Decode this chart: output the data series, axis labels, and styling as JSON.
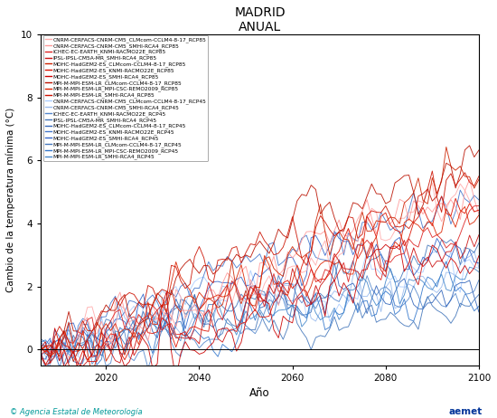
{
  "title": "MADRID",
  "subtitle": "ANUAL",
  "xlabel": "Año",
  "ylabel": "Cambio de la temperatura mínima (°C)",
  "xlim": [
    2006,
    2100
  ],
  "ylim": [
    -0.5,
    10
  ],
  "yticks": [
    0,
    2,
    4,
    6,
    8,
    10
  ],
  "xticks": [
    2020,
    2040,
    2060,
    2080,
    2100
  ],
  "rcp85_colors": [
    "#ffaaaa",
    "#ff9999",
    "#dd2222",
    "#cc1111",
    "#cc2200",
    "#dd1100",
    "#cc0000",
    "#bb1100",
    "#dd2200",
    "#cc1100"
  ],
  "rcp45_colors": [
    "#aaccff",
    "#99bbee",
    "#5588cc",
    "#4477bb",
    "#3366bb",
    "#4477cc",
    "#3366cc",
    "#4477bb",
    "#3377cc",
    "#4488cc"
  ],
  "legend_labels_rcp85": [
    "CNRM-CERFACS-CNRM-CM5_CLMcom-CCLM4-8-17_RCP85",
    "CNRM-CERFACS-CNRM-CM5_SMHI-RCA4_RCP85",
    "ICHEC-EC-EARTH_KNMI-RACMO22E_RCP85",
    "IPSL-IPSL-CM5A-MR_SMHI-RCA4_RCP85",
    "MOHC-HadGEM2-ES_CLMcom-CCLM4-8-17_RCP85",
    "MOHC-HadGEM2-ES_KNMI-RACMO22E_RCP85",
    "MOHC-HadGEM2-ES_SMHI-RCA4_RCP85",
    "MPI-M-MPI-ESM-LR_CLMcom-CCLM4-8-17_RCP85",
    "MPI-M-MPI-ESM-LR_MPI-CSC-REMO2009_RCP85",
    "MPI-M-MPI-ESM-LR_SMHI-RCA4_RCP85"
  ],
  "legend_labels_rcp45": [
    "CNRM-CERFACS-CNRM-CM5_CLMcom-CCLM4-8-17_RCP45",
    "CNRM-CERFACS-CNRM-CM5_SMHI-RCA4_RCP45",
    "ICHEC-EC-EARTH_KNMI-RACMO22E_RCP45",
    "IPSL-IPSL-CM5A-MR_SMHI-RCA4_RCP45",
    "MOHC-HadGEM2-ES_CLMcom-CCLM4-8-17_RCP45",
    "MOHC-HadGEM2-ES_KNMI-RACMO22E_RCP45",
    "MOHC-HadGEM2-ES_SMHI-RCA4_RCP45",
    "MPI-M-MPI-ESM-LR_CLMcom-CCLM4-8-17_RCP45",
    "MPI-M-MPI-ESM-LR_MPI-CSC-REMO2009_RCP45",
    "MPI-M-MPI-ESM-LR_SMHI-RCA4_RCP45"
  ],
  "footer_left": "© Agencia Estatal de Meteorología",
  "footer_right": "aemet",
  "seed": 42,
  "n_years": 95,
  "start_year": 2006
}
